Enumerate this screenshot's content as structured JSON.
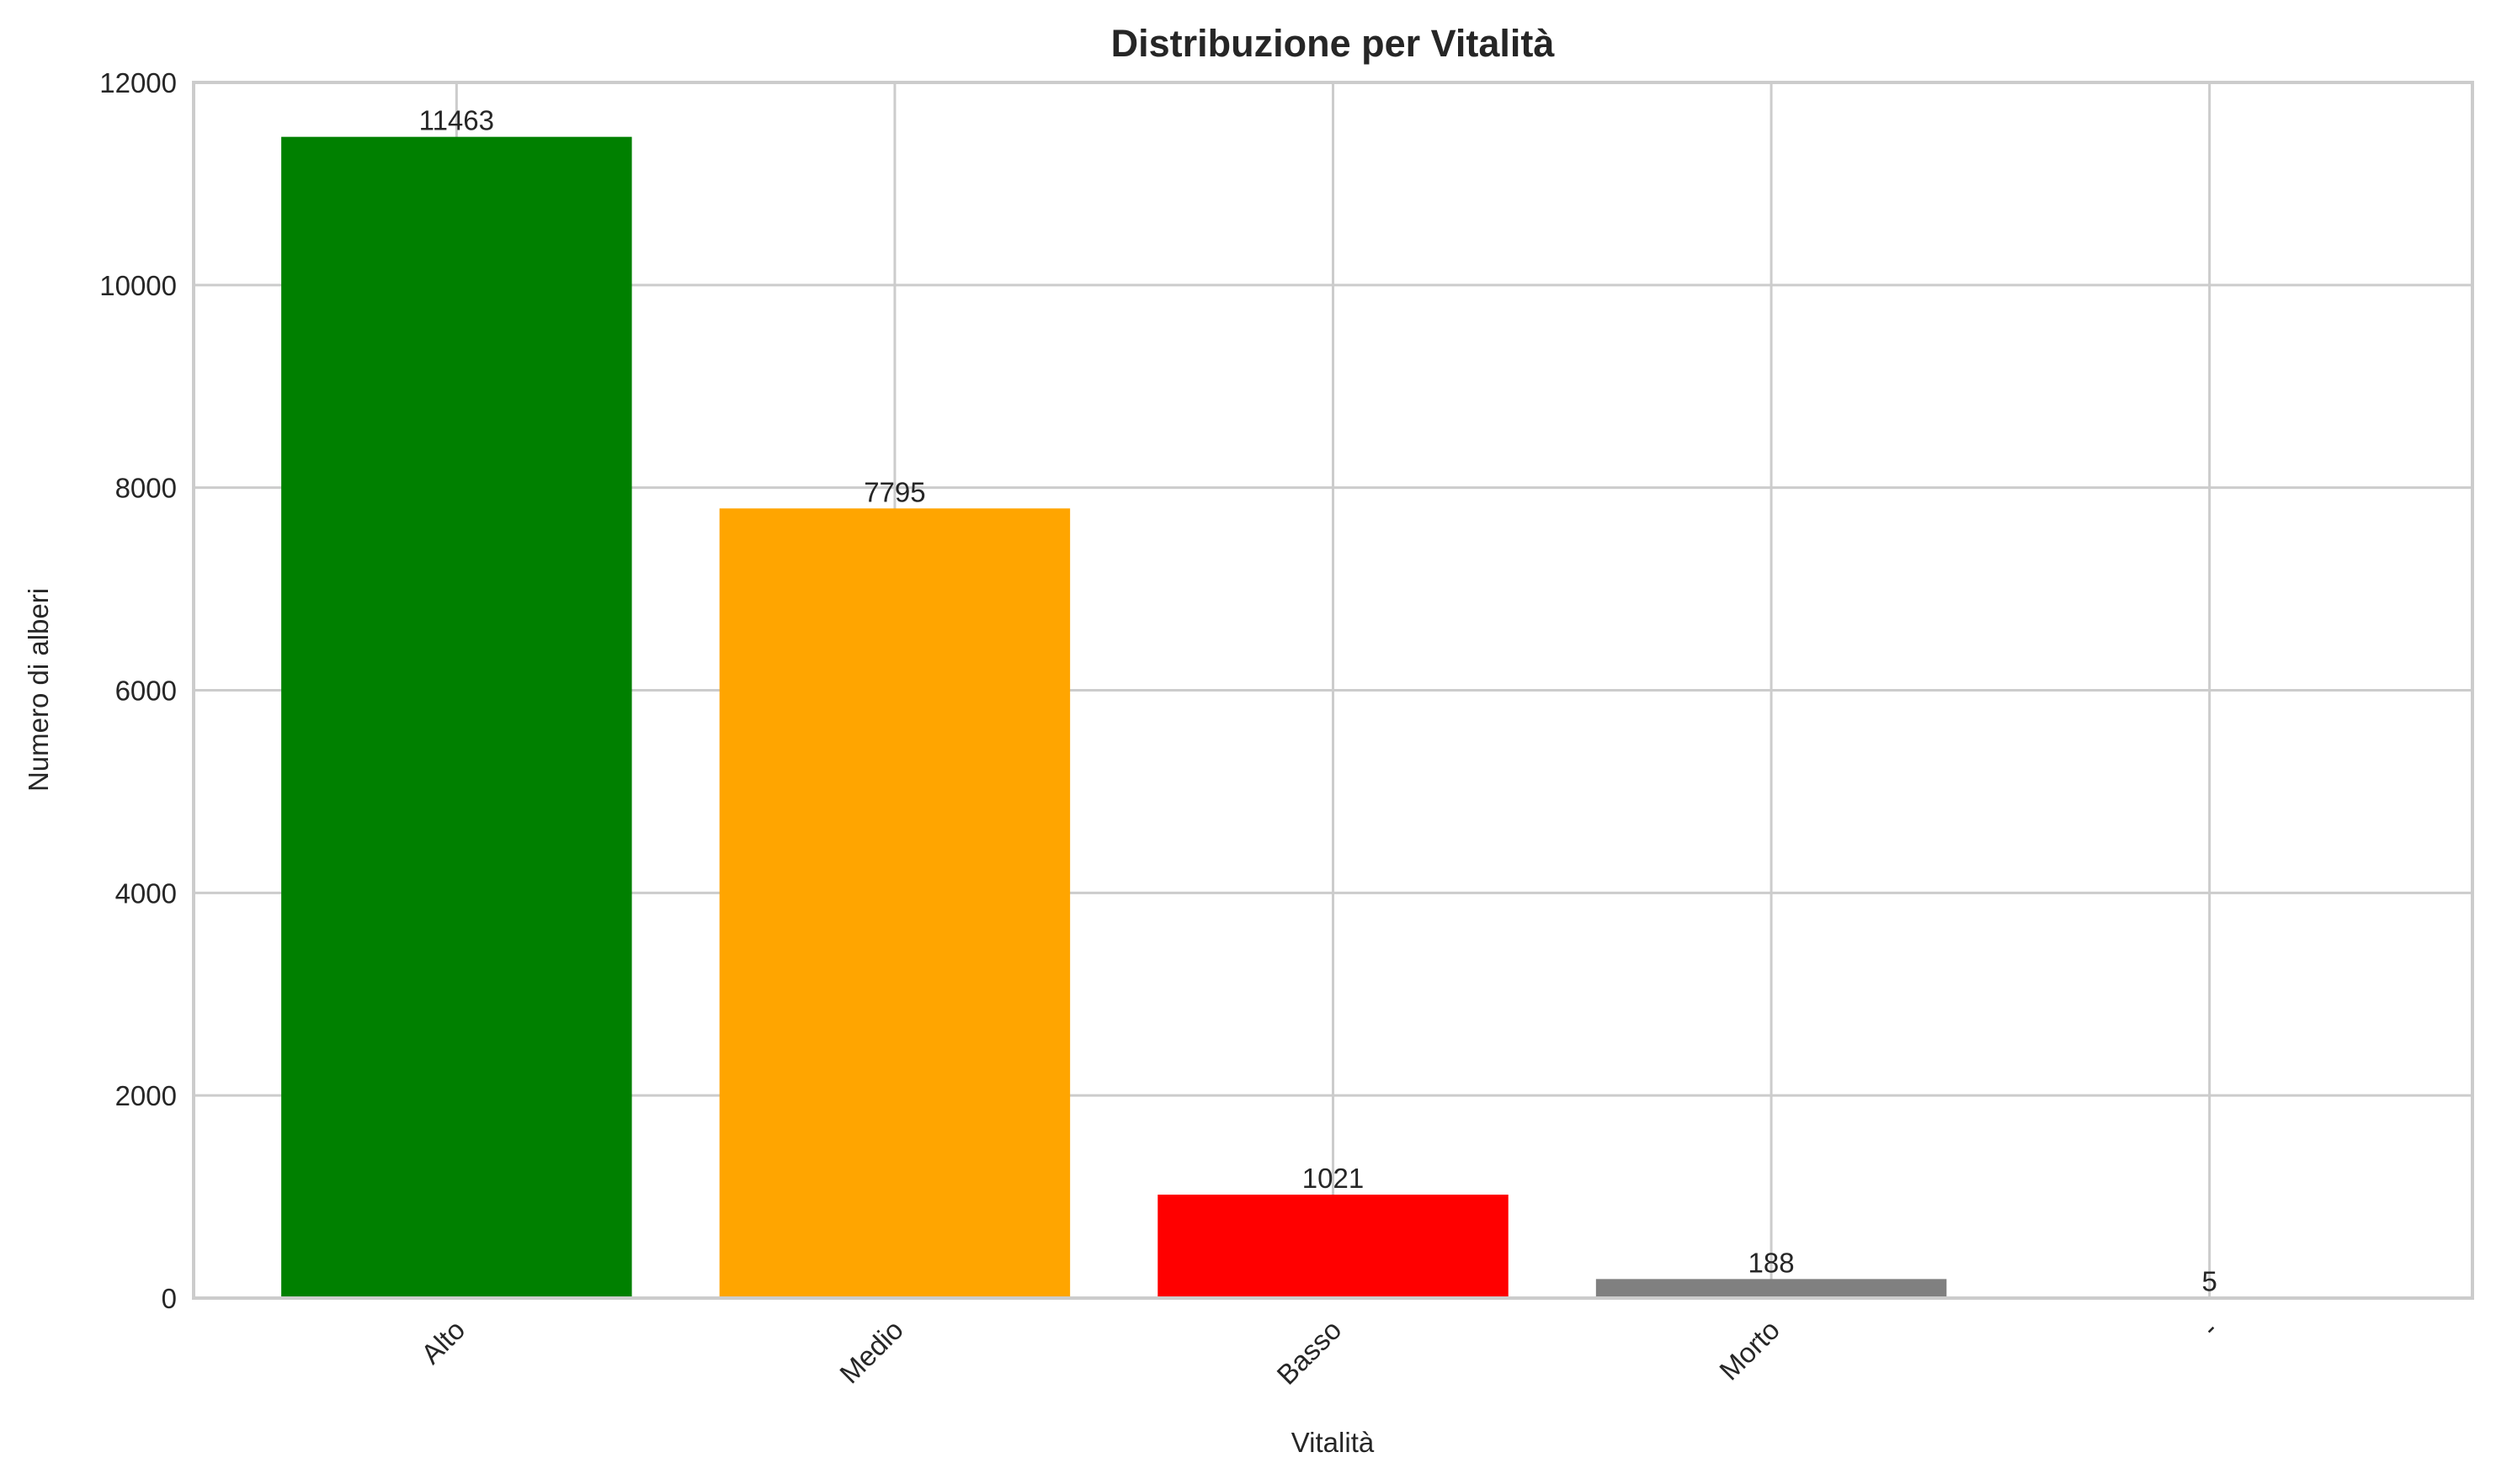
{
  "chart_data": {
    "type": "bar",
    "title": "Distribuzione per Vitalità",
    "xlabel": "Vitalità",
    "ylabel": "Numero di alberi",
    "categories": [
      "Alto",
      "Medio",
      "Basso",
      "Morto",
      "-"
    ],
    "values": [
      11463,
      7795,
      1021,
      188,
      5
    ],
    "colors": [
      "#008000",
      "#ffa500",
      "#ff0000",
      "#808080",
      "#808080"
    ],
    "bar_labels": [
      "11463",
      "7795",
      "1021",
      "188",
      "5"
    ],
    "ylim": [
      0,
      12000
    ],
    "yticks": [
      0,
      2000,
      4000,
      6000,
      8000,
      10000,
      12000
    ],
    "ytick_labels": [
      "0",
      "2000",
      "4000",
      "6000",
      "8000",
      "10000",
      "12000"
    ],
    "xtick_rotation": 45,
    "grid": true,
    "legend": null,
    "style": {
      "grid_color": "#cccccc",
      "spine_color": "#cccccc",
      "text_color": "#262626",
      "background": "#ffffff"
    }
  }
}
